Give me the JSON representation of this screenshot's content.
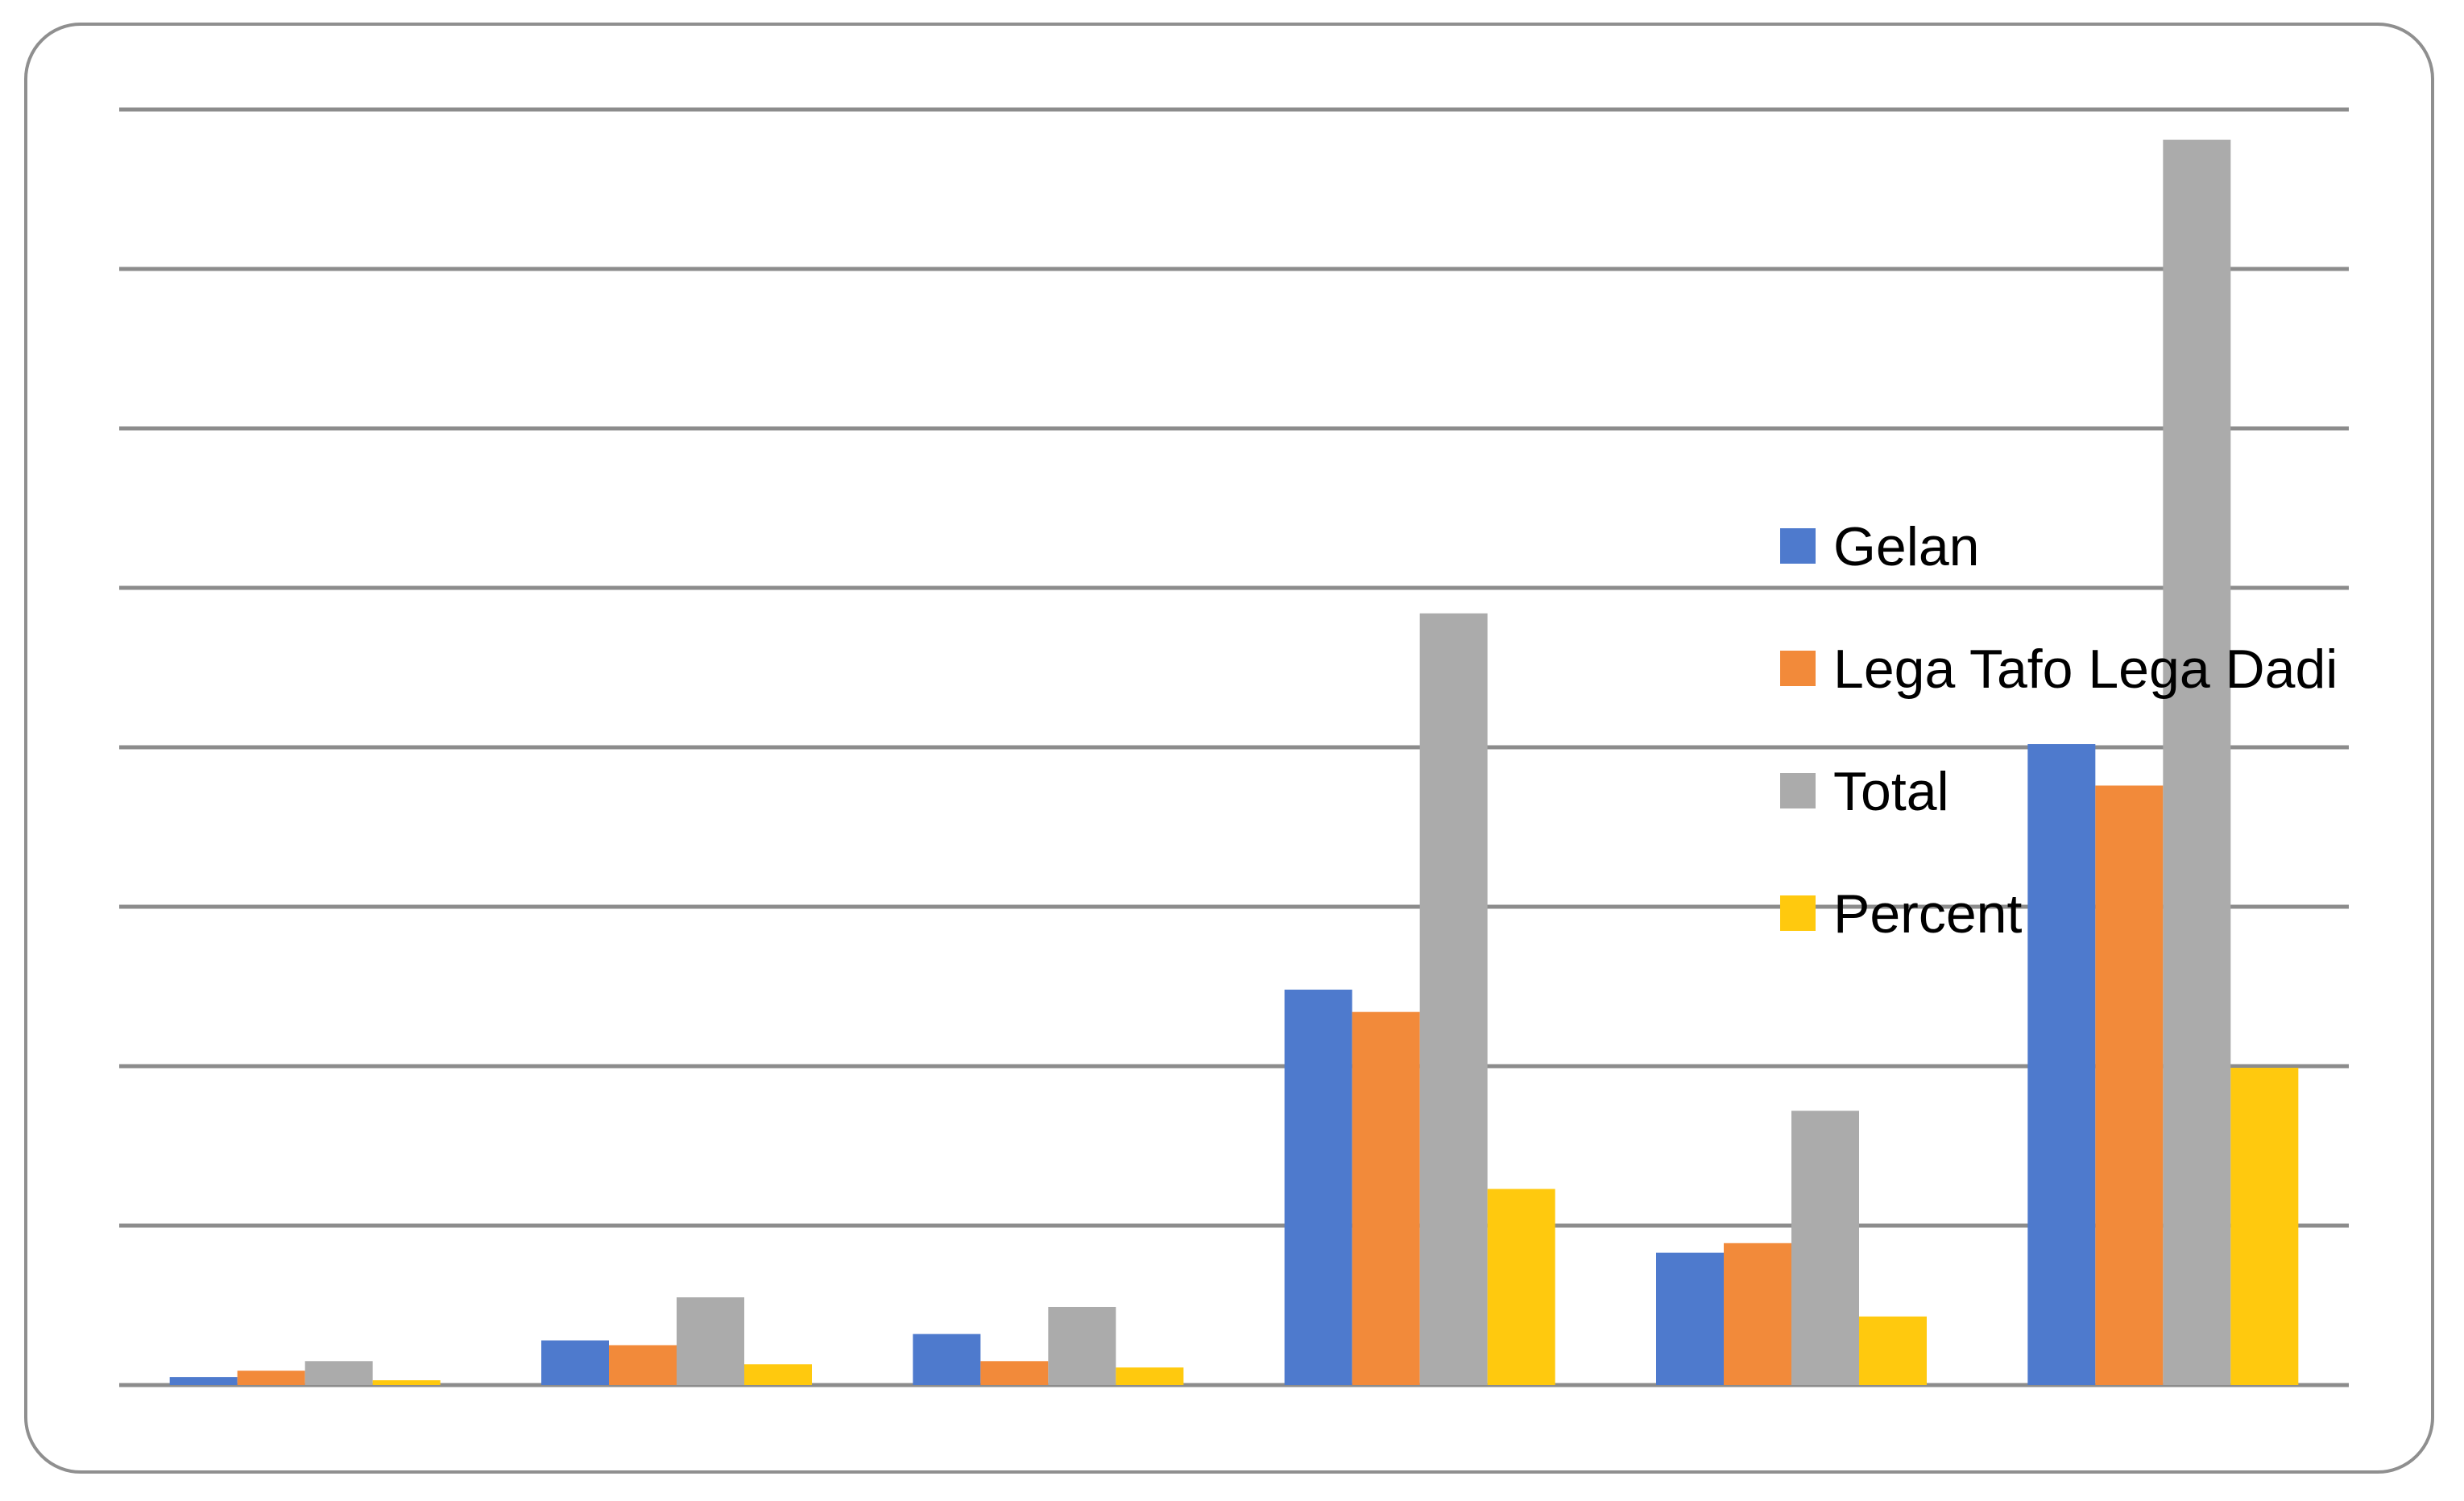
{
  "chart_data": {
    "type": "bar",
    "categories": [
      "",
      "",
      "",
      "",
      "",
      ""
    ],
    "series": [
      {
        "name": "Gelan",
        "color": "#4E7ACD",
        "values": [
          0.5,
          2.8,
          3.2,
          24.8,
          8.3,
          40.2
        ]
      },
      {
        "name": "Lega Tafo Lega Dadi",
        "color": "#F28A3A",
        "values": [
          0.9,
          2.5,
          1.5,
          23.4,
          8.9,
          37.6
        ]
      },
      {
        "name": "Total",
        "color": "#ABABAB",
        "values": [
          1.5,
          5.5,
          4.9,
          48.4,
          17.2,
          78.1
        ]
      },
      {
        "name": "Percent",
        "color": "#FFC90E",
        "values": [
          0.3,
          1.3,
          1.1,
          12.3,
          4.3,
          19.9
        ]
      }
    ],
    "ylim": [
      0,
      80
    ],
    "grid": true,
    "gridlines": 9,
    "legend_position": "right",
    "title": "",
    "xlabel": "",
    "ylabel": ""
  }
}
